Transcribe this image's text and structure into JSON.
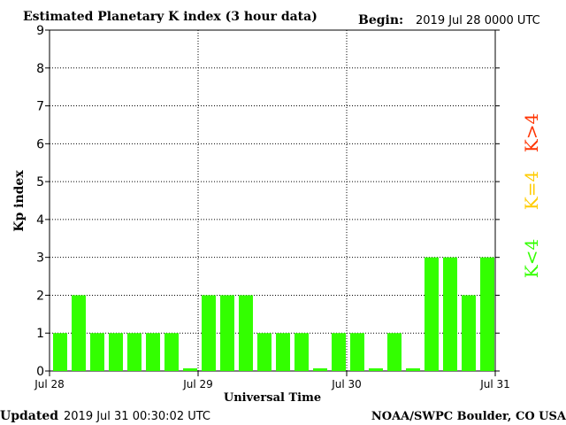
{
  "chart_data": {
    "type": "bar",
    "title": "Estimated Planetary K index (3 hour data)",
    "begin_label": "Begin:",
    "begin_value": "2019 Jul 28 0000 UTC",
    "xlabel": "Universal Time",
    "ylabel": "Kp index",
    "ylim": [
      0,
      9
    ],
    "yticks": [
      "0",
      "1",
      "2",
      "3",
      "4",
      "5",
      "6",
      "7",
      "8",
      "9"
    ],
    "x_ticks": [
      "Jul 28",
      "Jul 29",
      "Jul 30",
      "Jul 31"
    ],
    "grid": true,
    "values": [
      1,
      2,
      1,
      1,
      1,
      1,
      1,
      0,
      2,
      2,
      2,
      1,
      1,
      1,
      0,
      1,
      1,
      0,
      1,
      0,
      3,
      3,
      2,
      3
    ],
    "legend": [
      {
        "label": "K>4",
        "color": "#ff3300"
      },
      {
        "label": "K=4",
        "color": "#ffcc00"
      },
      {
        "label": "K<4",
        "color": "#33ff00"
      }
    ],
    "bar_color": "#33ff00"
  },
  "footer": {
    "updated_label": "Updated",
    "updated_value": "2019 Jul 31 00:30:02 UTC",
    "credit": "NOAA/SWPC Boulder, CO USA"
  }
}
